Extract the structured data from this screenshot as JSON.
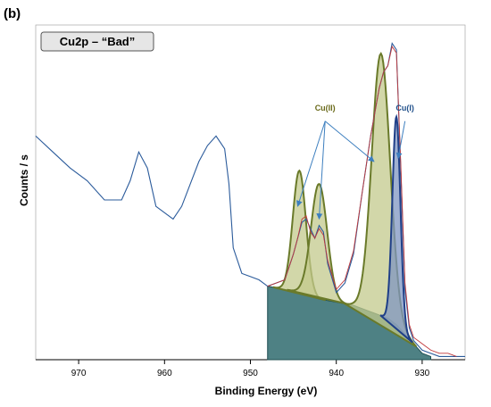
{
  "chart_data": {
    "type": "line",
    "panel_label": "(b)",
    "title": "Cu2p – “Bad”",
    "xlabel": "Binding Energy (eV)",
    "ylabel": "Counts / s",
    "xlim": [
      975,
      925
    ],
    "x_reversed": true,
    "x_ticks": [
      970,
      960,
      950,
      940,
      930
    ],
    "y_ticks_shown": false,
    "grid": false,
    "series": [
      {
        "role": "measured",
        "color": "#2b5b9b",
        "x": [
          975,
          973,
          971,
          969,
          967,
          965,
          964,
          963,
          962,
          961,
          960,
          959,
          958,
          957,
          956,
          955,
          954,
          953,
          952.5,
          952,
          951,
          950,
          949,
          948,
          947,
          946,
          945,
          944.5,
          944,
          943.5,
          943,
          942.5,
          942,
          941.5,
          941,
          940,
          939,
          938,
          937,
          936,
          935,
          934.5,
          934,
          933.5,
          933,
          932.5,
          932,
          931.5,
          931,
          930,
          929,
          928,
          927,
          926,
          925
        ],
        "y": [
          0.7,
          0.65,
          0.6,
          0.56,
          0.5,
          0.5,
          0.56,
          0.65,
          0.6,
          0.48,
          0.46,
          0.44,
          0.48,
          0.55,
          0.62,
          0.67,
          0.7,
          0.66,
          0.55,
          0.35,
          0.27,
          0.26,
          0.25,
          0.23,
          0.24,
          0.25,
          0.33,
          0.38,
          0.43,
          0.44,
          0.41,
          0.38,
          0.42,
          0.4,
          0.3,
          0.21,
          0.24,
          0.33,
          0.52,
          0.7,
          0.85,
          0.9,
          0.92,
          0.99,
          0.97,
          0.6,
          0.22,
          0.1,
          0.06,
          0.03,
          0.02,
          0.01,
          0.01,
          0.01,
          0.01
        ]
      },
      {
        "role": "envelope",
        "color": "#c0393b",
        "x": [
          948,
          946,
          945,
          944.5,
          944,
          943.5,
          943,
          942.5,
          942,
          941.5,
          941,
          940,
          939,
          938,
          937,
          936,
          935,
          934.5,
          934,
          933.5,
          933,
          932.5,
          932,
          931.5,
          931,
          930,
          929,
          928,
          927,
          926
        ],
        "y": [
          0.23,
          0.25,
          0.33,
          0.38,
          0.44,
          0.45,
          0.4,
          0.38,
          0.41,
          0.39,
          0.31,
          0.22,
          0.25,
          0.34,
          0.52,
          0.7,
          0.85,
          0.9,
          0.92,
          0.98,
          0.96,
          0.62,
          0.24,
          0.11,
          0.07,
          0.05,
          0.03,
          0.02,
          0.02,
          0.01
        ]
      }
    ],
    "background": {
      "color": "#2f6b6e",
      "x": [
        948,
        946,
        944,
        942,
        940,
        938,
        936,
        934,
        933,
        932,
        931,
        930,
        929
      ],
      "y": [
        0.23,
        0.22,
        0.21,
        0.19,
        0.18,
        0.17,
        0.15,
        0.13,
        0.11,
        0.08,
        0.05,
        0.02,
        0.01
      ]
    },
    "components": [
      {
        "name": "Cu(II)",
        "center": 944.3,
        "height": 0.38,
        "fwhm": 1.8,
        "fill": "#c3c98c",
        "stroke": "#6a7a2a"
      },
      {
        "name": "Cu(II)",
        "center": 942.0,
        "height": 0.36,
        "fwhm": 2.2,
        "fill": "#c3c98c",
        "stroke": "#6a7a2a"
      },
      {
        "name": "Cu(II)",
        "center": 934.8,
        "height": 0.82,
        "fwhm": 2.5,
        "fill": "#c3c98c",
        "stroke": "#6a7a2a"
      },
      {
        "name": "Cu(I)",
        "center": 933.0,
        "height": 0.65,
        "fwhm": 1.1,
        "fill": "#7f95c2",
        "stroke": "#1f3f88"
      }
    ],
    "annotations": [
      {
        "text": "Cu(II)",
        "color": "#6a6a1a",
        "at": [
          941.3,
          0.78
        ],
        "arrows_to": [
          [
            944.5,
            0.48
          ],
          [
            942.0,
            0.44
          ],
          [
            935.6,
            0.62
          ]
        ]
      },
      {
        "text": "Cu(I)",
        "color": "#1f4f8a",
        "at": [
          932.0,
          0.78
        ],
        "arrows_to": [
          [
            932.8,
            0.63
          ]
        ]
      }
    ]
  }
}
